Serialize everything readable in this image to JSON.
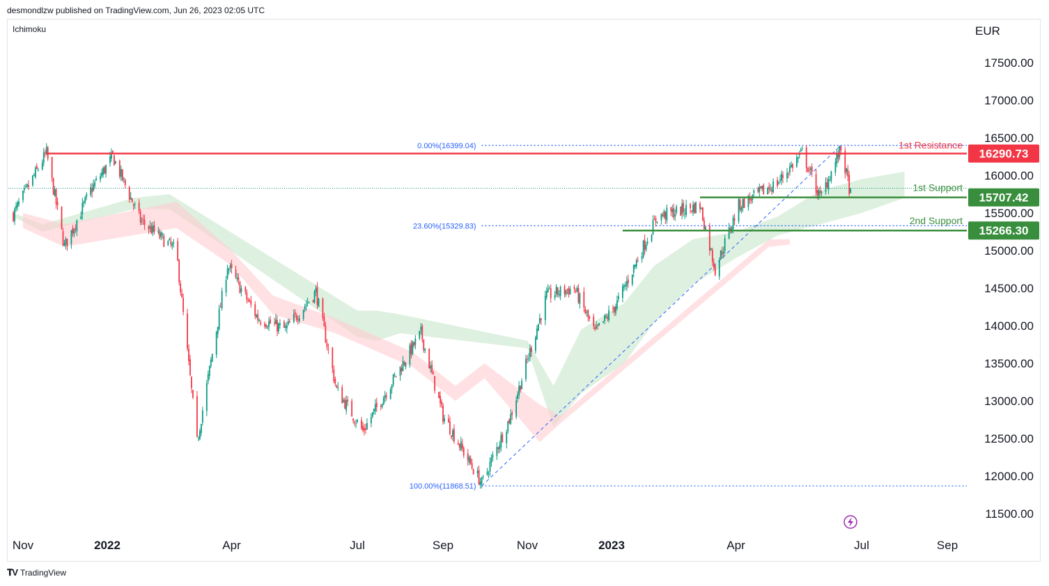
{
  "header": {
    "published": "desmondlzw published on TradingView.com, Jun 26, 2023 02:05 UTC"
  },
  "indicator": {
    "name": "Ichimoku"
  },
  "currency": "EUR",
  "footer": {
    "brand": "TradingView"
  },
  "colors": {
    "resistance": "#f23645",
    "support": "#388e3c",
    "fib": "#2962ff",
    "up": "#089981",
    "down": "#f23645",
    "cloud_bull": "#c8e6c9",
    "cloud_bear": "#ffcdd2"
  },
  "chart_data": {
    "type": "candlestick",
    "ylim": [
      11300,
      17900
    ],
    "y_ticks": [
      "17500.00",
      "17000.00",
      "16500.00",
      "16000.00",
      "15500.00",
      "15000.00",
      "14500.00",
      "14000.00",
      "13500.00",
      "13000.00",
      "12500.00",
      "12000.00",
      "11500.00"
    ],
    "x_ticks": [
      {
        "label": "Nov",
        "date": "2021-11-01",
        "bold": false
      },
      {
        "label": "2022",
        "date": "2022-01-01",
        "bold": true
      },
      {
        "label": "Apr",
        "date": "2022-04-01",
        "bold": false
      },
      {
        "label": "Jul",
        "date": "2022-07-01",
        "bold": false
      },
      {
        "label": "Sep",
        "date": "2022-09-01",
        "bold": false
      },
      {
        "label": "Nov",
        "date": "2022-11-01",
        "bold": false
      },
      {
        "label": "2023",
        "date": "2023-01-01",
        "bold": true
      },
      {
        "label": "Apr",
        "date": "2023-04-01",
        "bold": false
      },
      {
        "label": "Jul",
        "date": "2023-07-01",
        "bold": false
      },
      {
        "label": "Sep",
        "date": "2023-09-01",
        "bold": false
      }
    ],
    "close_series": {
      "dates": [
        "2021-10-25",
        "2021-11-18",
        "2021-12-01",
        "2021-12-20",
        "2022-01-05",
        "2022-01-25",
        "2022-02-20",
        "2022-03-07",
        "2022-03-29",
        "2022-04-20",
        "2022-05-10",
        "2022-06-01",
        "2022-06-16",
        "2022-07-05",
        "2022-08-16",
        "2022-09-01",
        "2022-09-29",
        "2022-10-20",
        "2022-11-15",
        "2022-12-05",
        "2022-12-20",
        "2023-01-05",
        "2023-02-03",
        "2023-03-06",
        "2023-03-17",
        "2023-04-03",
        "2023-05-01",
        "2023-05-19",
        "2023-06-01",
        "2023-06-16",
        "2023-06-23"
      ],
      "values": [
        15480,
        16300,
        15050,
        15800,
        16250,
        15400,
        15000,
        12450,
        14800,
        14100,
        13950,
        14450,
        13150,
        12600,
        13900,
        12800,
        11900,
        12800,
        14400,
        14500,
        13900,
        14300,
        15450,
        15600,
        14750,
        15600,
        15900,
        16300,
        15700,
        16350,
        15750
      ]
    },
    "levels": [
      {
        "name": "1st Resistance",
        "value": 16290.73,
        "label": "16290.73",
        "kind": "resistance",
        "start_date": "2021-11-18"
      },
      {
        "name": "1st Support",
        "value": 15707.42,
        "label": "15707.42",
        "kind": "support",
        "start_date": "2023-03-06"
      },
      {
        "name": "2nd Support",
        "value": 15266.3,
        "label": "15266.30",
        "kind": "support",
        "start_date": "2023-01-09"
      }
    ],
    "fib": [
      {
        "label": "0.00%(16399.04)",
        "value": 16399.04
      },
      {
        "label": "23.60%(15329.83)",
        "value": 15329.83
      },
      {
        "label": "100.00%(11868.51)",
        "value": 11868.51
      }
    ],
    "fib_anchors": {
      "low_date": "2022-09-29",
      "low": 11868.51,
      "high_date": "2023-06-16",
      "high": 16399.04
    },
    "last_price": 15829,
    "cloud_bull": {
      "dates": [
        "2021-10-25",
        "2021-11-15",
        "2022-01-20",
        "2022-02-15",
        "2022-07-01",
        "2022-07-15",
        "2022-08-01",
        "2022-11-01",
        "2022-11-20",
        "2022-12-10",
        "2023-01-10",
        "2023-02-01",
        "2023-03-01",
        "2023-04-01",
        "2023-05-01",
        "2023-06-01",
        "2023-07-01",
        "2023-08-01"
      ],
      "upper": [
        15500,
        15350,
        15700,
        15750,
        14200,
        14200,
        14150,
        13800,
        13200,
        13950,
        14300,
        14800,
        15150,
        15250,
        15450,
        15800,
        15950,
        16050
      ],
      "lower": [
        15450,
        15250,
        15550,
        15550,
        13850,
        13800,
        13900,
        13700,
        12650,
        13100,
        13500,
        14050,
        14550,
        14900,
        15200,
        15350,
        15500,
        15700
      ]
    },
    "cloud_bear": {
      "dates": [
        "2021-11-01",
        "2021-12-01",
        "2022-02-20",
        "2022-04-01",
        "2022-05-01",
        "2022-06-15",
        "2022-08-10",
        "2022-09-10",
        "2022-10-01",
        "2022-11-10",
        "2022-11-25",
        "2023-04-25",
        "2023-05-10"
      ],
      "upper": [
        15500,
        15350,
        15650,
        15000,
        14400,
        14100,
        13650,
        13200,
        13500,
        12950,
        12800,
        15150,
        15150
      ],
      "lower": [
        15300,
        15050,
        15300,
        14800,
        14150,
        13900,
        13450,
        13000,
        13300,
        12450,
        12700,
        15050,
        15080
      ]
    }
  }
}
